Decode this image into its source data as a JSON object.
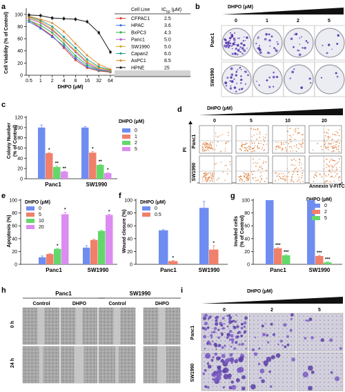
{
  "colors": {
    "blue": "#6f8df0",
    "salmon": "#f0806a",
    "green": "#63d86a",
    "violet": "#dc8cf0",
    "red": "#e03a2e",
    "lines": [
      "#e03a2e",
      "#3b6fe0",
      "#35b24a",
      "#b05ad0",
      "#d9a21a",
      "#2a9c8f",
      "#e0892c",
      "#111111"
    ]
  },
  "panels": {
    "a": "a",
    "b": "b",
    "c": "c",
    "d": "d",
    "e": "e",
    "f": "f",
    "g": "g",
    "h": "h",
    "i": "i"
  },
  "panel_a": {
    "ylabel": "Cell Viability (% of Control)",
    "xlabel": "DHPO (μM)",
    "yticks": [
      "0",
      "20",
      "40",
      "60",
      "80",
      "100"
    ],
    "xticks": [
      "0.5",
      "1",
      "2",
      "4",
      "8",
      "16",
      "32",
      "64"
    ],
    "table_header": {
      "col1": "Cell Line",
      "col2": "IC",
      "col2_sub": "50",
      "col2_unit": " (μM)"
    },
    "rows": [
      {
        "name": "CFPAC1",
        "ic50": "2.5"
      },
      {
        "name": "HPAC",
        "ic50": "3.6"
      },
      {
        "name": "BxPC3",
        "ic50": "4.3"
      },
      {
        "name": "Panc1",
        "ic50": "5.0"
      },
      {
        "name": "SW1990",
        "ic50": "5.0"
      },
      {
        "name": "Capan2",
        "ic50": "6.0"
      },
      {
        "name": "AsPC1",
        "ic50": "8.5"
      },
      {
        "name": "HPNE",
        "ic50": "25"
      }
    ]
  },
  "panel_b": {
    "title": "DHPO (μM)",
    "doses": [
      "0",
      "1",
      "2",
      "5"
    ],
    "rows": [
      "Panc1",
      "SW1990"
    ]
  },
  "panel_c": {
    "ylabel_1": "Colony Number",
    "ylabel_2": "(% of Control)",
    "legend_title": "DHPO (μM)",
    "stars": [
      "*",
      "**",
      "**",
      "*",
      "**",
      "*"
    ]
  },
  "panel_d": {
    "title": "DHPO (μM)",
    "doses": [
      "0",
      "5",
      "10",
      "20"
    ],
    "rows": [
      "Panc1",
      "SW1990"
    ],
    "ylabel": "PI",
    "xlabel": "Annexin V-FITC"
  },
  "panel_e": {
    "ylabel": "Apoptosis (%)",
    "legend_title": "DHPO (μM)",
    "stars": [
      "*",
      "*",
      "*"
    ]
  },
  "panel_f": {
    "ylabel": "Wound closure (%)",
    "legend_title": "DHPO (μM)",
    "stars": [
      "*",
      "*"
    ]
  },
  "panel_g": {
    "ylabel_1": "Invaded cells",
    "ylabel_2": "(% of Control)",
    "legend_title": "DHPO (μM)",
    "stars": [
      "***",
      "***",
      "***",
      "***"
    ]
  },
  "panel_h": {
    "groups": [
      "Panc1",
      "SW1990"
    ],
    "cols": [
      "Control",
      "DHPO",
      "Control",
      "DHPO"
    ],
    "rows": [
      "0 h",
      "24 h"
    ]
  },
  "panel_i": {
    "title": "DHPO (μM)",
    "doses": [
      "0",
      "2",
      "5"
    ],
    "rows": [
      "Panc1",
      "SW1990"
    ]
  },
  "chart_data": [
    {
      "type": "line",
      "panel": "a",
      "xlabel": "DHPO (μM)",
      "ylabel": "Cell Viability (% of Control)",
      "x": [
        0.5,
        1,
        2,
        4,
        8,
        16,
        32,
        64
      ],
      "xscale": "log2",
      "ylim": [
        0,
        110
      ],
      "series": [
        {
          "name": "CFPAC1",
          "values": [
            91,
            78,
            65,
            45,
            25,
            12,
            7,
            5
          ]
        },
        {
          "name": "HPAC",
          "values": [
            88,
            77,
            63,
            48,
            28,
            14,
            8,
            6
          ]
        },
        {
          "name": "BxPC3",
          "values": [
            90,
            82,
            70,
            52,
            32,
            17,
            9,
            6
          ]
        },
        {
          "name": "Panc1",
          "values": [
            93,
            86,
            74,
            57,
            38,
            20,
            10,
            7
          ]
        },
        {
          "name": "SW1990",
          "values": [
            95,
            88,
            76,
            58,
            40,
            22,
            12,
            8
          ]
        },
        {
          "name": "Capan2",
          "values": [
            96,
            90,
            80,
            63,
            45,
            26,
            14,
            9
          ]
        },
        {
          "name": "AsPC1",
          "values": [
            97,
            92,
            86,
            72,
            52,
            33,
            18,
            10
          ]
        },
        {
          "name": "HPNE",
          "values": [
            99,
            98,
            94,
            93,
            92,
            88,
            70,
            38
          ]
        }
      ]
    },
    {
      "type": "bar",
      "panel": "c",
      "categories": [
        "Panc1",
        "SW1990"
      ],
      "ylim": [
        0,
        120
      ],
      "yticks": [
        0,
        20,
        40,
        60,
        80,
        100,
        120
      ],
      "series": [
        {
          "name": "0",
          "values": [
            100,
            100
          ],
          "errors": [
            5,
            2
          ]
        },
        {
          "name": "1",
          "values": [
            50,
            51
          ],
          "errors": [
            1,
            2
          ]
        },
        {
          "name": "2",
          "values": [
            23,
            27
          ],
          "errors": [
            2,
            1
          ]
        },
        {
          "name": "5",
          "values": [
            14,
            11
          ],
          "errors": [
            1,
            1
          ]
        }
      ]
    },
    {
      "type": "bar",
      "panel": "e",
      "categories": [
        "Panc1",
        "SW1990"
      ],
      "ylim": [
        0,
        100
      ],
      "yticks": [
        0,
        20,
        40,
        60,
        80,
        100
      ],
      "series": [
        {
          "name": "0",
          "values": [
            11,
            26
          ],
          "errors": [
            2,
            3
          ]
        },
        {
          "name": "5",
          "values": [
            16,
            38
          ],
          "errors": [
            1,
            1
          ]
        },
        {
          "name": "10",
          "values": [
            24,
            52
          ],
          "errors": [
            1,
            1
          ]
        },
        {
          "name": "20",
          "values": [
            78,
            77
          ],
          "errors": [
            3,
            1
          ]
        }
      ]
    },
    {
      "type": "bar",
      "panel": "f",
      "categories": [
        "Panc1",
        "SW1990"
      ],
      "ylim": [
        0,
        100
      ],
      "yticks": [
        0,
        20,
        40,
        60,
        80,
        100
      ],
      "series": [
        {
          "name": "0",
          "values": [
            53,
            88
          ],
          "errors": [
            1,
            10
          ]
        },
        {
          "name": "0.5",
          "values": [
            5,
            23
          ],
          "errors": [
            1,
            6
          ]
        }
      ]
    },
    {
      "type": "bar",
      "panel": "g",
      "categories": [
        "Panc1",
        "SW1990"
      ],
      "ylim": [
        0,
        100
      ],
      "yticks": [
        0,
        20,
        40,
        60,
        80,
        100
      ],
      "series": [
        {
          "name": "0",
          "values": [
            100,
            100
          ],
          "errors": [
            0,
            0
          ]
        },
        {
          "name": "2",
          "values": [
            25,
            13
          ],
          "errors": [
            1,
            1
          ]
        },
        {
          "name": "5",
          "values": [
            14,
            3
          ],
          "errors": [
            1,
            1
          ]
        }
      ]
    }
  ]
}
